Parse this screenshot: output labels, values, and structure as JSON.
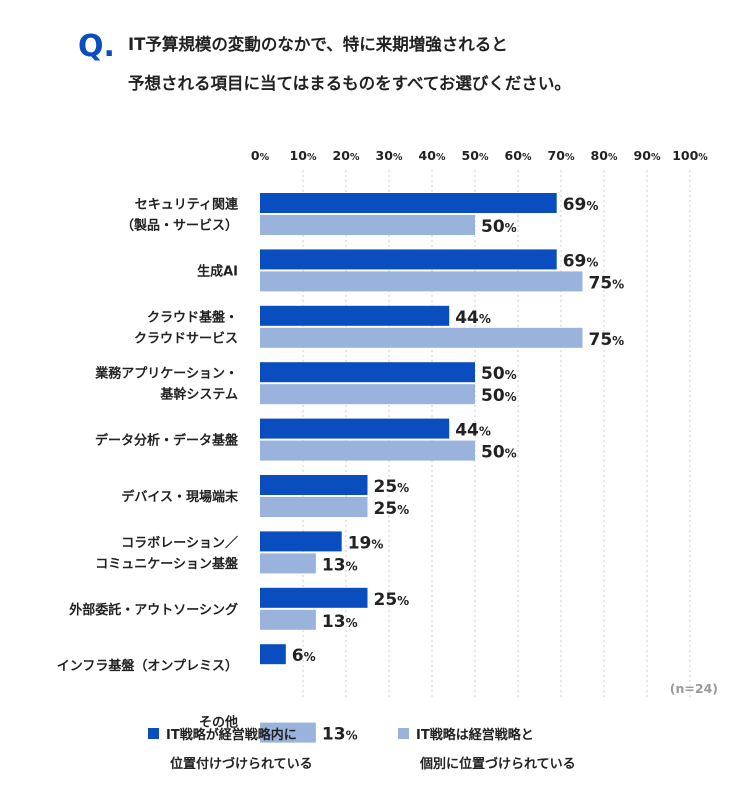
{
  "question": {
    "mark": "Q.",
    "lines": [
      "IT予算規模の変動のなかで、特に来期増強されると",
      "予想される項目に当てはまるものをすべてお選びください。"
    ]
  },
  "sample_note": "(n=24)",
  "colors": {
    "accent": "#0a4dbf",
    "series1": "#0a4dbf",
    "series2": "#9ab3dc"
  },
  "legend": [
    {
      "lines": [
        "IT戦略が経営戦略内に",
        "位置付けづけられている"
      ],
      "color": "#0a4dbf"
    },
    {
      "lines": [
        "IT戦略は経営戦略と",
        "個別に位置づけられている"
      ],
      "color": "#9ab3dc"
    }
  ],
  "chart_data": {
    "type": "bar",
    "orientation": "horizontal",
    "xlim": [
      0,
      100
    ],
    "x_ticks": [
      {
        "num": "0",
        "unit": "%"
      },
      {
        "num": "10",
        "unit": "%"
      },
      {
        "num": "20",
        "unit": "%"
      },
      {
        "num": "30",
        "unit": "%"
      },
      {
        "num": "40",
        "unit": "%"
      },
      {
        "num": "50",
        "unit": "%"
      },
      {
        "num": "60",
        "unit": "%"
      },
      {
        "num": "70",
        "unit": "%"
      },
      {
        "num": "80",
        "unit": "%"
      },
      {
        "num": "90",
        "unit": "%"
      },
      {
        "num": "100",
        "unit": "%"
      }
    ],
    "value_unit": "%",
    "grid": true,
    "legend_position": "bottom",
    "categories": [
      [
        "セキュリティ関連",
        "（製品・サービス）"
      ],
      [
        "生成AI"
      ],
      [
        "クラウド基盤・",
        "クラウドサービス"
      ],
      [
        "業務アプリケーション・",
        "基幹システム"
      ],
      [
        "データ分析・データ基盤"
      ],
      [
        "デバイス・現場端末"
      ],
      [
        "コラボレーション／",
        "コミュニケーション基盤"
      ],
      [
        "外部委託・アウトソーシング"
      ],
      [
        "インフラ基盤（オンプレミス）"
      ],
      [
        "その他"
      ]
    ],
    "series": [
      {
        "name": "IT戦略が経営戦略内に位置付けづけられている",
        "values": [
          69,
          69,
          44,
          50,
          44,
          25,
          19,
          25,
          6,
          null
        ]
      },
      {
        "name": "IT戦略は経営戦略と個別に位置づけられている",
        "values": [
          50,
          75,
          75,
          50,
          50,
          25,
          13,
          13,
          null,
          13
        ]
      }
    ]
  }
}
